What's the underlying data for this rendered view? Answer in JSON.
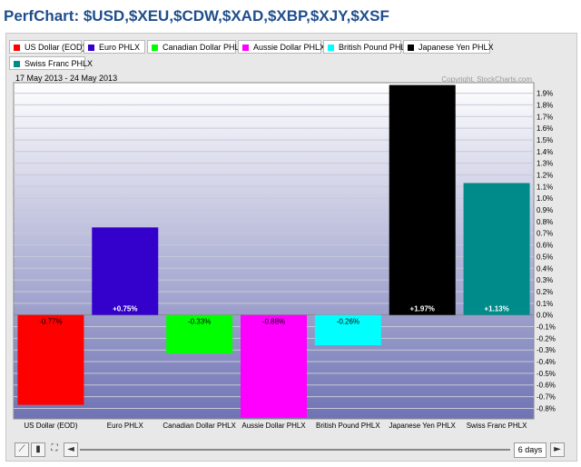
{
  "title": "PerfChart: $USD,$XEU,$CDW,$XAD,$XBP,$XJY,$XSF",
  "date_range": "17 May 2013 - 24 May 2013",
  "copyright": "Copyright, StockCharts.com",
  "controls": {
    "range_label": "6 days",
    "left_arrow": "◄",
    "right_arrow": "►"
  },
  "chart_data": {
    "type": "bar",
    "categories": [
      "US Dollar (EOD)",
      "Euro PHLX",
      "Canadian Dollar PHLX",
      "Aussie Dollar PHLX",
      "British Pound PHLX",
      "Japanese Yen PHLX",
      "Swiss Franc PHLX"
    ],
    "values": [
      -0.77,
      0.75,
      -0.33,
      -0.88,
      -0.26,
      1.97,
      1.13
    ],
    "data_labels": [
      "-0.77%",
      "+0.75%",
      "-0.33%",
      "-0.88%",
      "-0.26%",
      "+1.97%",
      "+1.13%"
    ],
    "colors": [
      "#ff0000",
      "#3300cc",
      "#00ff00",
      "#ff00ff",
      "#00ffff",
      "#000000",
      "#008b8b"
    ],
    "label_colors": [
      "#000000",
      "#ffffff",
      "#000000",
      "#000000",
      "#000000",
      "#ffffff",
      "#ffffff"
    ],
    "legend": [
      "US Dollar (EOD)",
      "Euro PHLX",
      "Canadian Dollar PHLX",
      "Aussie Dollar PHLX",
      "British Pound PHLX",
      "Japanese Yen PHLX",
      "Swiss Franc PHLX"
    ],
    "yticks": [
      1.9,
      1.8,
      1.7,
      1.6,
      1.5,
      1.4,
      1.3,
      1.2,
      1.1,
      1.0,
      0.9,
      0.8,
      0.7,
      0.6,
      0.5,
      0.4,
      0.3,
      0.2,
      0.1,
      0.0,
      -0.1,
      -0.2,
      -0.3,
      -0.4,
      -0.5,
      -0.6,
      -0.7,
      -0.8
    ],
    "ytick_labels": [
      "1.9%",
      "1.8%",
      "1.7%",
      "1.6%",
      "1.5%",
      "1.4%",
      "1.3%",
      "1.2%",
      "1.1%",
      "1.0%",
      "0.9%",
      "0.8%",
      "0.7%",
      "0.6%",
      "0.5%",
      "0.4%",
      "0.3%",
      "0.2%",
      "0.1%",
      "0.0%",
      "-0.1%",
      "-0.2%",
      "-0.3%",
      "-0.4%",
      "-0.5%",
      "-0.6%",
      "-0.7%",
      "-0.8%"
    ],
    "ylim": [
      -0.89,
      1.99
    ],
    "grid": true,
    "legend_position": "top"
  }
}
